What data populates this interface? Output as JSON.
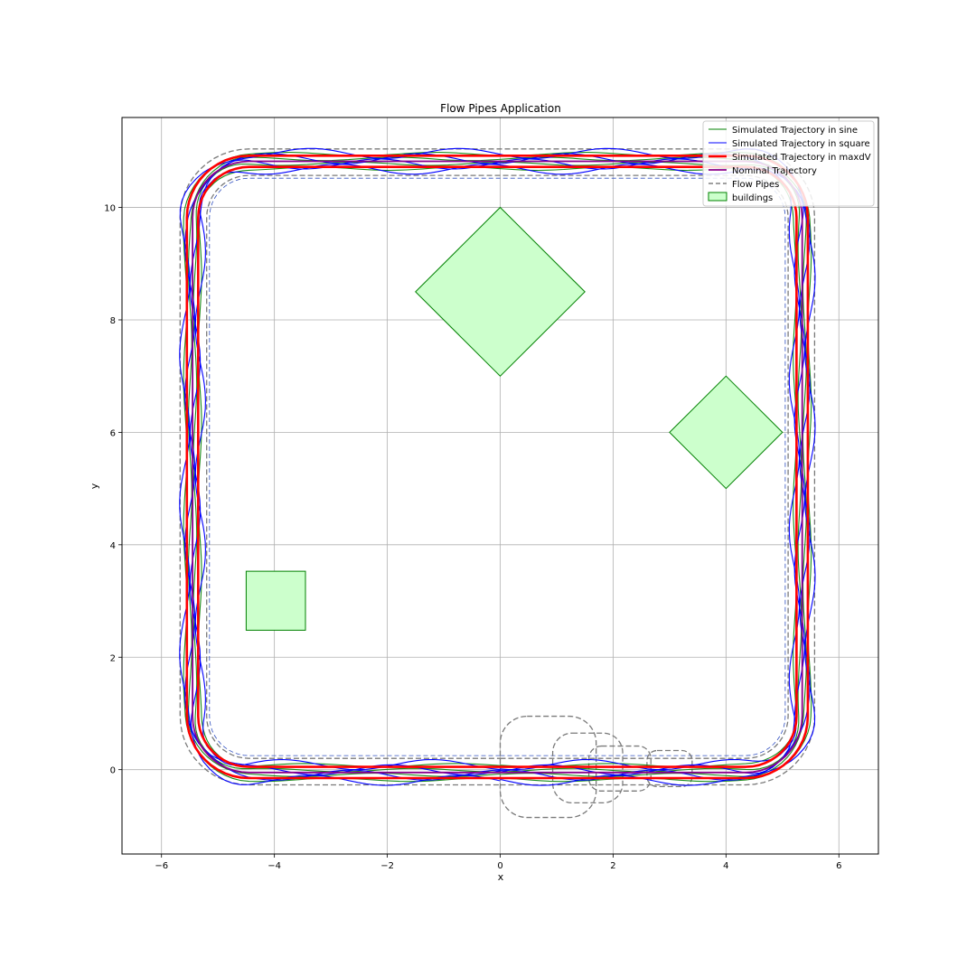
{
  "chart_data": {
    "type": "line",
    "title": "Flow Pipes Application",
    "xlabel": "x",
    "ylabel": "y",
    "xlim": [
      -6.7,
      6.7
    ],
    "ylim": [
      -1.5,
      11.6
    ],
    "xticks": [
      -6,
      -4,
      -2,
      0,
      2,
      4,
      6
    ],
    "yticks": [
      0,
      2,
      4,
      6,
      8,
      10
    ],
    "xtick_labels": [
      "−6",
      "−4",
      "−2",
      "0",
      "2",
      "4",
      "6"
    ],
    "ytick_labels": [
      "0",
      "2",
      "4",
      "6",
      "8",
      "10"
    ],
    "grid": true,
    "legend_position": "top-right",
    "legend": [
      {
        "label": "Simulated Trajectory in sine",
        "color": "#008000",
        "style": "thin-line"
      },
      {
        "label": "Simulated Trajectory in square",
        "color": "#0000ff",
        "style": "thin-line"
      },
      {
        "label": "Simulated Trajectory in maxdV",
        "color": "#ff0000",
        "style": "thick-line"
      },
      {
        "label": "Nominal Trajectory",
        "color": "#8b008b",
        "style": "medium-line"
      },
      {
        "label": "Flow Pipes",
        "color": "#808080",
        "style": "dashed"
      },
      {
        "label": "buildings",
        "color": "#ccffcc",
        "edge": "#008000",
        "style": "patch"
      }
    ],
    "buildings": [
      {
        "name": "building-large-diamond",
        "points": [
          [
            0,
            10
          ],
          [
            1.5,
            8.5
          ],
          [
            0,
            7
          ],
          [
            -1.5,
            8.5
          ]
        ]
      },
      {
        "name": "building-small-diamond",
        "points": [
          [
            4,
            7
          ],
          [
            5,
            6
          ],
          [
            4,
            5
          ],
          [
            3,
            6
          ]
        ]
      },
      {
        "name": "building-square",
        "points": [
          [
            -4.5,
            2.48
          ],
          [
            -3.45,
            2.48
          ],
          [
            -3.45,
            3.53
          ],
          [
            -4.5,
            3.53
          ]
        ]
      }
    ],
    "nominal_path": {
      "x_min": -5.45,
      "x_max": 5.35,
      "y_min": -0.05,
      "y_max": 10.82,
      "corner_radius": 1.0
    },
    "series": [
      {
        "name": "Simulated Trajectory in sine",
        "color": "#008000",
        "count": 4,
        "spread": 0.13
      },
      {
        "name": "Simulated Trajectory in square",
        "color": "#0000ff",
        "count": 4,
        "spread": 0.14
      },
      {
        "name": "Simulated Trajectory in maxdV",
        "color": "#ff0000",
        "count": 2,
        "spread": 0.1
      },
      {
        "name": "Nominal Trajectory",
        "color": "#8b008b",
        "count": 1,
        "spread": 0
      }
    ],
    "flow_pipe_boundary": {
      "inner_offset": 0.25,
      "outer_offset": 0.22
    },
    "start_region_pipes": [
      {
        "center": [
          0.85,
          0.05
        ],
        "half_width": 0.85,
        "half_height": 0.9
      },
      {
        "center": [
          1.55,
          0.03
        ],
        "half_width": 0.62,
        "half_height": 0.62
      },
      {
        "center": [
          2.12,
          0.02
        ],
        "half_width": 0.55,
        "half_height": 0.4
      },
      {
        "center": [
          3.0,
          0.02
        ],
        "half_width": 0.4,
        "half_height": 0.32
      }
    ]
  }
}
